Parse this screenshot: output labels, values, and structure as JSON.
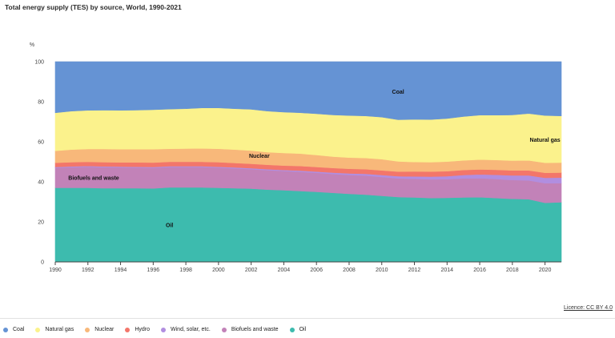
{
  "title": "Total energy supply (TES) by source, World, 1990-2021",
  "licence": "Licence: CC BY 4.0",
  "chart_data": {
    "type": "area",
    "stacked_percent": true,
    "unit": "%",
    "ylim": [
      0,
      100
    ],
    "xlim": [
      1990,
      2021
    ],
    "yticks": [
      0,
      20,
      40,
      60,
      80,
      100
    ],
    "xticks": [
      1990,
      1992,
      1994,
      1996,
      1998,
      2000,
      2002,
      2004,
      2006,
      2008,
      2010,
      2012,
      2014,
      2016,
      2018,
      2020
    ],
    "grid": true,
    "legend_position": "bottom",
    "x": [
      1990,
      1991,
      1992,
      1993,
      1994,
      1995,
      1996,
      1997,
      1998,
      1999,
      2000,
      2001,
      2002,
      2003,
      2004,
      2005,
      2006,
      2007,
      2008,
      2009,
      2010,
      2011,
      2012,
      2013,
      2014,
      2015,
      2016,
      2017,
      2018,
      2019,
      2020,
      2021
    ],
    "series": [
      {
        "name": "Oil",
        "color": "#3dbbae",
        "values": [
          37,
          37,
          37,
          36.8,
          36.8,
          36.8,
          36.7,
          37.2,
          37.2,
          37.2,
          37,
          36.8,
          36.6,
          36.1,
          35.8,
          35.4,
          35,
          34.5,
          34,
          33.6,
          33,
          32.4,
          32.2,
          31.9,
          32,
          32.2,
          32.3,
          31.9,
          31.5,
          31.3,
          29.5,
          29.8
        ]
      },
      {
        "name": "Biofuels and waste",
        "color": "#c282b8",
        "values": [
          10,
          10.3,
          10.5,
          10.5,
          10.4,
          10.3,
          10.3,
          10.2,
          10.2,
          10.2,
          10.1,
          9.9,
          9.7,
          9.7,
          9.6,
          9.6,
          9.5,
          9.4,
          9.4,
          9.5,
          9.4,
          9.3,
          9.3,
          9.3,
          9.3,
          9.5,
          9.5,
          9.5,
          9.4,
          9.4,
          9.8,
          9.5
        ]
      },
      {
        "name": "Wind, solar, etc.",
        "color": "#b18ee0",
        "values": [
          0.4,
          0.4,
          0.4,
          0.4,
          0.4,
          0.4,
          0.4,
          0.4,
          0.4,
          0.4,
          0.4,
          0.5,
          0.5,
          0.5,
          0.5,
          0.6,
          0.6,
          0.7,
          0.8,
          0.9,
          1,
          1.1,
          1.2,
          1.4,
          1.5,
          1.7,
          1.9,
          2.1,
          2.3,
          2.5,
          2.7,
          2.8
        ]
      },
      {
        "name": "Hydro",
        "color": "#f3766a",
        "values": [
          2.1,
          2.1,
          2.1,
          2.1,
          2.1,
          2.2,
          2.2,
          2.2,
          2.2,
          2.2,
          2.3,
          2.2,
          2.2,
          2.2,
          2.2,
          2.3,
          2.3,
          2.3,
          2.3,
          2.3,
          2.3,
          2.3,
          2.5,
          2.5,
          2.5,
          2.5,
          2.5,
          2.5,
          2.5,
          2.5,
          2.5,
          2.5
        ]
      },
      {
        "name": "Nuclear",
        "color": "#f8b87a",
        "values": [
          6,
          6.3,
          6.4,
          6.6,
          6.6,
          6.6,
          6.7,
          6.5,
          6.6,
          6.7,
          6.7,
          6.7,
          6.6,
          6.3,
          6.3,
          6.2,
          6,
          5.7,
          5.6,
          5.6,
          5.6,
          5.1,
          4.7,
          4.7,
          4.8,
          4.8,
          4.9,
          4.9,
          4.9,
          5,
          5,
          5
        ]
      },
      {
        "name": "Natural gas",
        "color": "#fbf28c",
        "values": [
          19,
          19.2,
          19.3,
          19.4,
          19.4,
          19.5,
          19.7,
          19.8,
          19.9,
          20.2,
          20.4,
          20.4,
          20.6,
          20.5,
          20.4,
          20.4,
          20.6,
          20.8,
          21,
          21,
          21,
          20.8,
          21.3,
          21.3,
          21.5,
          21.9,
          22.2,
          22.4,
          22.8,
          23.4,
          23.6,
          23.3
        ]
      },
      {
        "name": "Coal",
        "color": "#6593d4",
        "values": [
          25.5,
          24.7,
          24.3,
          24.2,
          24.3,
          24.2,
          24,
          23.7,
          23.5,
          23.1,
          23.1,
          23.5,
          23.8,
          24.7,
          25.2,
          25.5,
          26,
          26.6,
          26.9,
          27.1,
          27.7,
          29,
          28.8,
          28.9,
          28.4,
          27.4,
          26.7,
          26.7,
          26.6,
          25.9,
          26.9,
          27.1
        ]
      }
    ],
    "annotations": [
      {
        "text": "Coal",
        "x": 2011,
        "y": 85
      },
      {
        "text": "Natural gas",
        "x": 2020,
        "y": 61
      },
      {
        "text": "Nuclear",
        "x": 2002.5,
        "y": 53
      },
      {
        "text": "Biofuels and waste",
        "x": 1990.8,
        "y": 42
      },
      {
        "text": "Oil",
        "x": 1997,
        "y": 18.5
      }
    ]
  },
  "legend_order": [
    "Coal",
    "Natural gas",
    "Nuclear",
    "Hydro",
    "Wind, solar, etc.",
    "Biofuels and waste",
    "Oil"
  ]
}
